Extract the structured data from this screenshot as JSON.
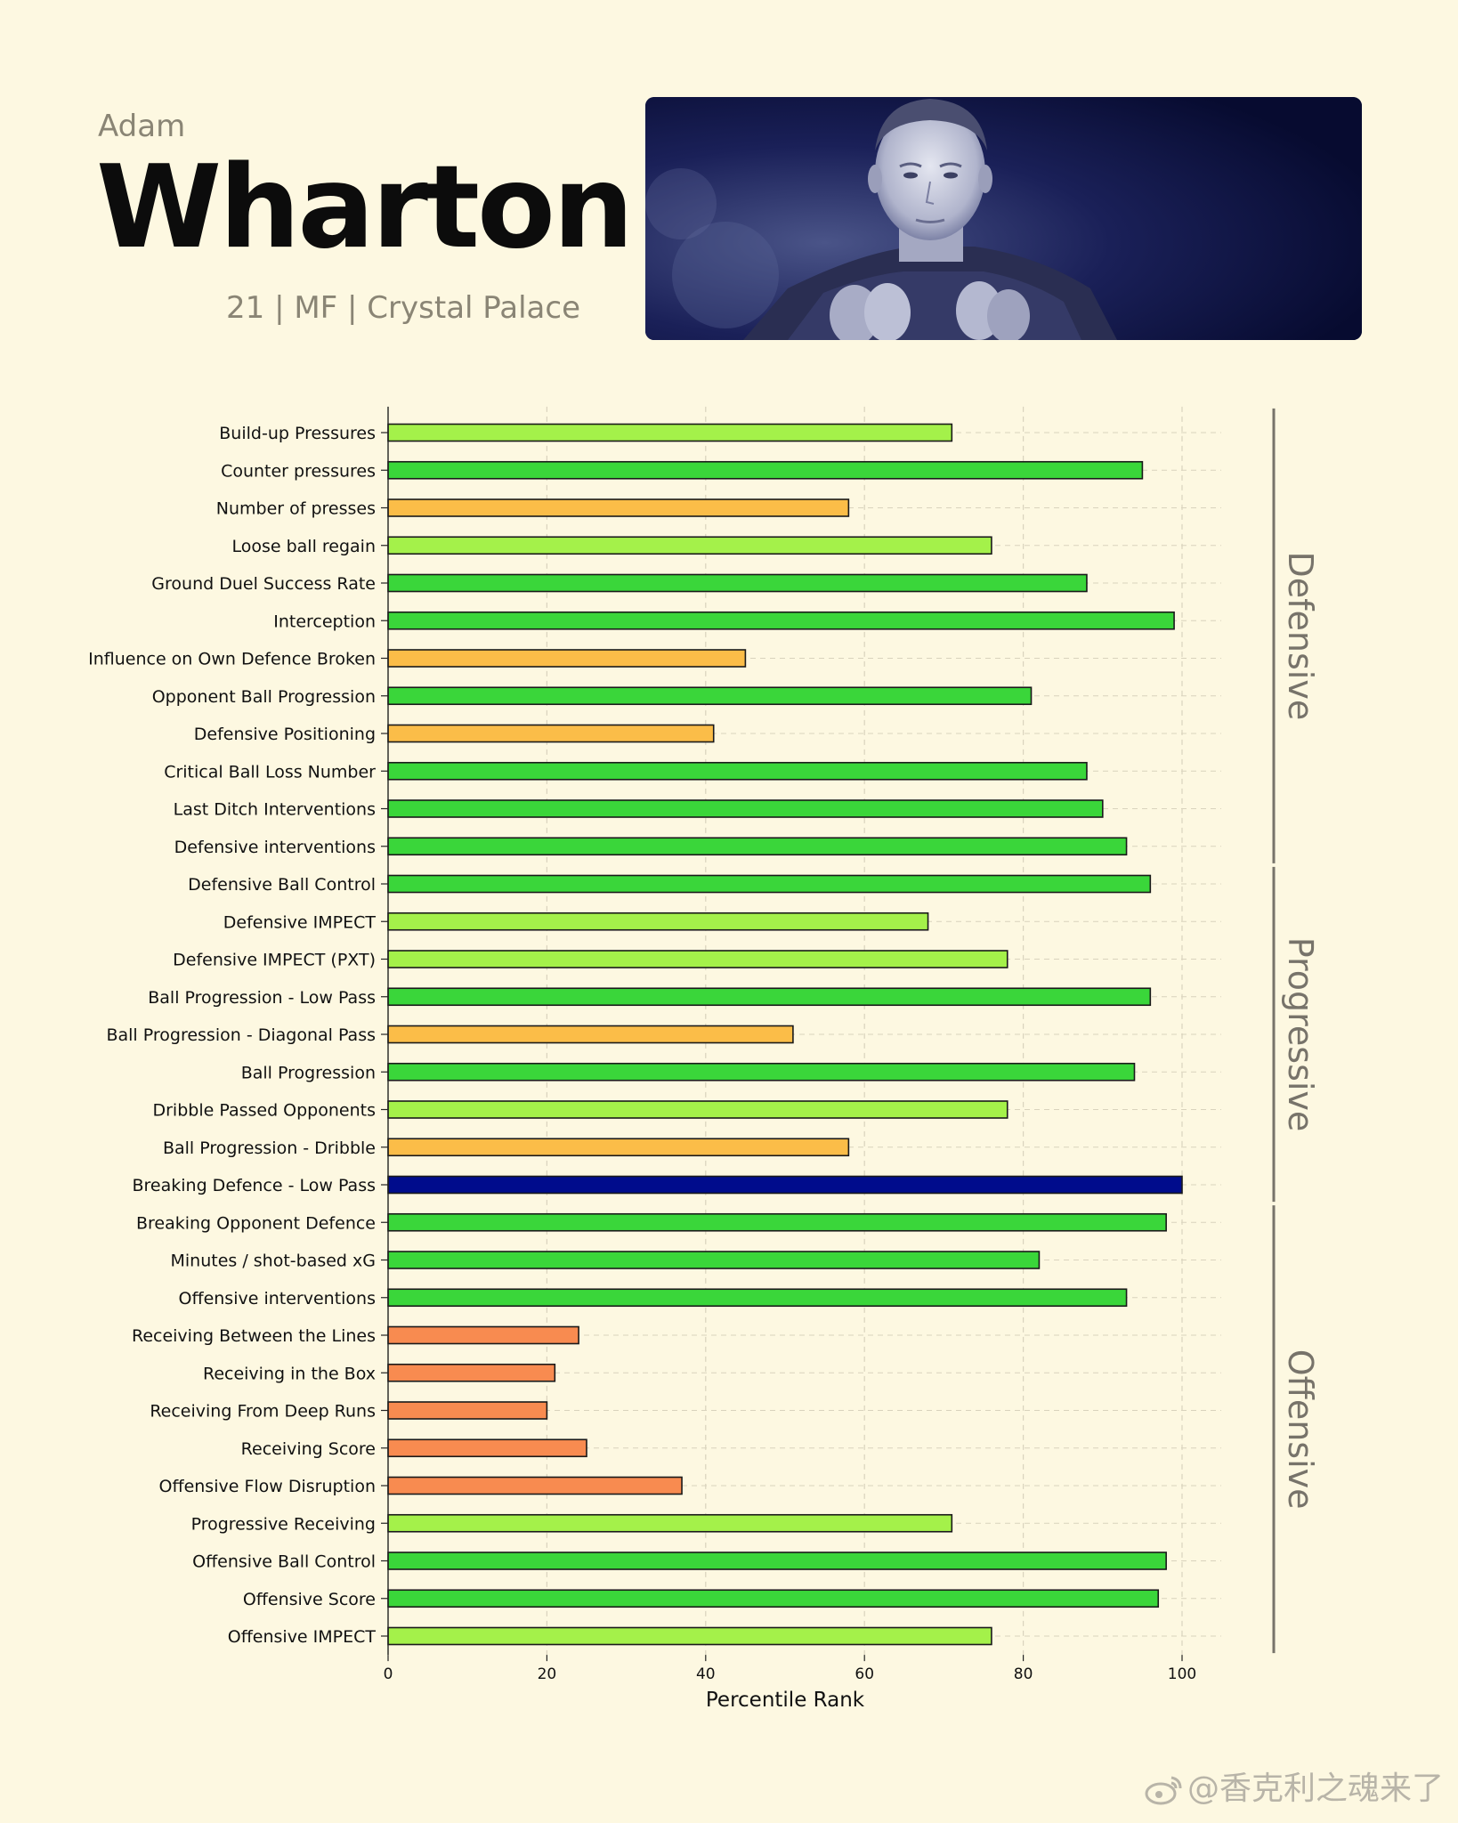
{
  "player": {
    "first_name": "Adam",
    "last_name": "Wharton",
    "meta": "21 | MF | Crystal Palace"
  },
  "watermark": "@香克利之魂来了",
  "colors": {
    "background": "#fdf8e1",
    "elite": "#000c8c",
    "high": "#3ad63a",
    "good": "#a4f14a",
    "average": "#fbbd48",
    "low": "#f88b50"
  },
  "chart_data": {
    "type": "bar",
    "orientation": "horizontal",
    "xlabel": "Percentile Rank",
    "xlim": [
      0,
      100
    ],
    "xticks": [
      0,
      20,
      40,
      60,
      80,
      100
    ],
    "grid": true,
    "bars": [
      {
        "label": "Build-up Pressures",
        "value": 71,
        "color": "#a4f14a"
      },
      {
        "label": "Counter pressures",
        "value": 95,
        "color": "#3ad63a"
      },
      {
        "label": "Number of presses",
        "value": 58,
        "color": "#fbbd48"
      },
      {
        "label": "Loose ball regain",
        "value": 76,
        "color": "#a4f14a"
      },
      {
        "label": "Ground Duel Success Rate",
        "value": 88,
        "color": "#3ad63a"
      },
      {
        "label": "Interception",
        "value": 99,
        "color": "#3ad63a"
      },
      {
        "label": "Influence on Own Defence Broken",
        "value": 45,
        "color": "#fbbd48"
      },
      {
        "label": "Opponent Ball Progression",
        "value": 81,
        "color": "#3ad63a"
      },
      {
        "label": "Defensive Positioning",
        "value": 41,
        "color": "#fbbd48"
      },
      {
        "label": "Critical Ball Loss Number",
        "value": 88,
        "color": "#3ad63a"
      },
      {
        "label": "Last Ditch Interventions",
        "value": 90,
        "color": "#3ad63a"
      },
      {
        "label": "Defensive interventions",
        "value": 93,
        "color": "#3ad63a"
      },
      {
        "label": "Defensive Ball Control",
        "value": 96,
        "color": "#3ad63a"
      },
      {
        "label": "Defensive IMPECT",
        "value": 68,
        "color": "#a4f14a"
      },
      {
        "label": "Defensive IMPECT (PXT)",
        "value": 78,
        "color": "#a4f14a"
      },
      {
        "label": "Ball Progression - Low Pass",
        "value": 96,
        "color": "#3ad63a"
      },
      {
        "label": "Ball Progression - Diagonal Pass",
        "value": 51,
        "color": "#fbbd48"
      },
      {
        "label": "Ball Progression",
        "value": 94,
        "color": "#3ad63a"
      },
      {
        "label": "Dribble Passed Opponents",
        "value": 78,
        "color": "#a4f14a"
      },
      {
        "label": "Ball Progression - Dribble",
        "value": 58,
        "color": "#fbbd48"
      },
      {
        "label": "Breaking Defence - Low Pass",
        "value": 100,
        "color": "#000c8c"
      },
      {
        "label": "Breaking Opponent Defence",
        "value": 98,
        "color": "#3ad63a"
      },
      {
        "label": "Minutes / shot-based xG",
        "value": 82,
        "color": "#3ad63a"
      },
      {
        "label": "Offensive interventions",
        "value": 93,
        "color": "#3ad63a"
      },
      {
        "label": "Receiving Between the Lines",
        "value": 24,
        "color": "#f88b50"
      },
      {
        "label": "Receiving in the Box",
        "value": 21,
        "color": "#f88b50"
      },
      {
        "label": "Receiving From Deep Runs",
        "value": 20,
        "color": "#f88b50"
      },
      {
        "label": "Receiving Score",
        "value": 25,
        "color": "#f88b50"
      },
      {
        "label": "Offensive Flow Disruption",
        "value": 37,
        "color": "#f88b50"
      },
      {
        "label": "Progressive Receiving",
        "value": 71,
        "color": "#a4f14a"
      },
      {
        "label": "Offensive Ball Control",
        "value": 98,
        "color": "#3ad63a"
      },
      {
        "label": "Offensive Score",
        "value": 97,
        "color": "#3ad63a"
      },
      {
        "label": "Offensive IMPECT",
        "value": 76,
        "color": "#a4f14a"
      }
    ],
    "groups": [
      {
        "label": "Defensive",
        "start_index": 0,
        "end_index": 11
      },
      {
        "label": "Progressive",
        "start_index": 12,
        "end_index": 20
      },
      {
        "label": "Offensive",
        "start_index": 21,
        "end_index": 32
      }
    ]
  }
}
